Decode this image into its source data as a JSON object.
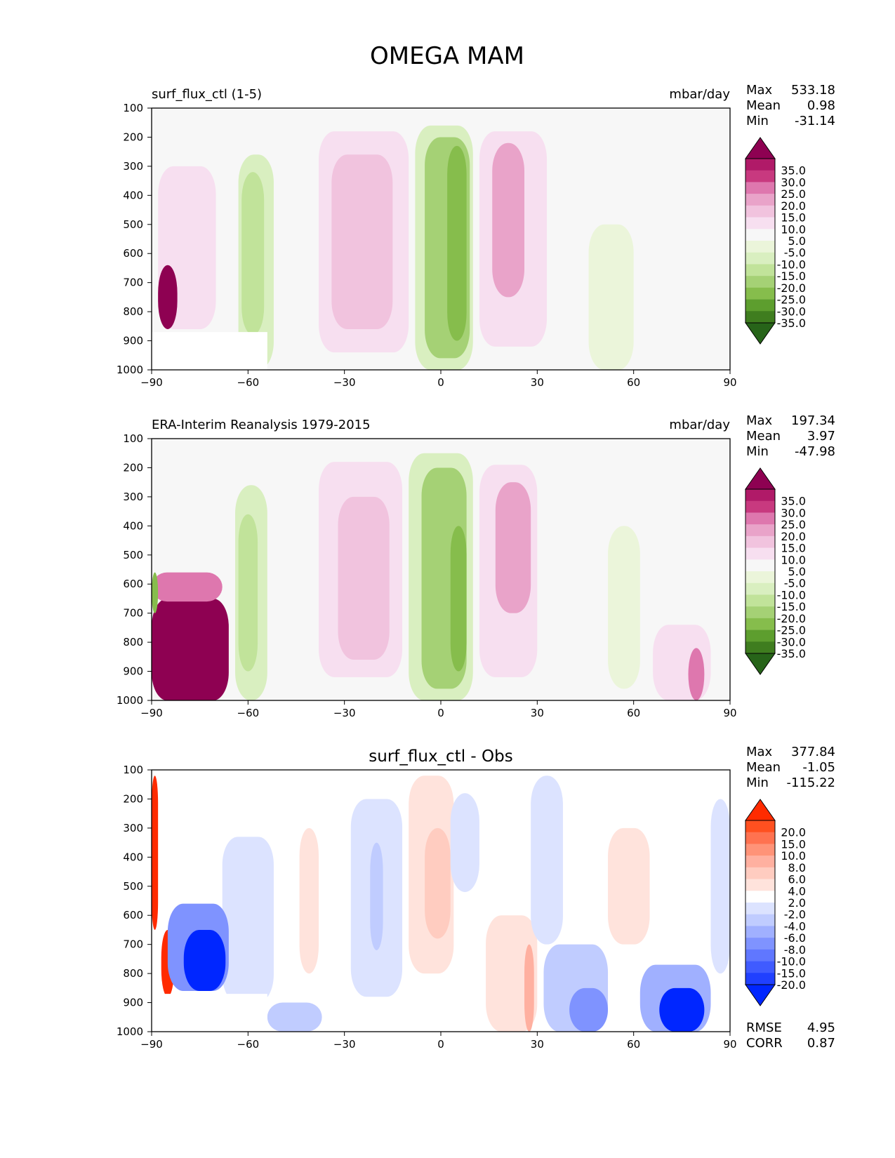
{
  "title": "OMEGA MAM",
  "chart_data": [
    {
      "type": "heatmap",
      "title": "surf_flux_ctl (1-5)",
      "units": "mbar/day",
      "stats": {
        "max": "533.18",
        "mean": "0.98",
        "min": "-31.14"
      },
      "stat_labels": {
        "max": "Max",
        "mean": "Mean",
        "min": "Min"
      },
      "xlim": [
        -90,
        90
      ],
      "ylim": [
        1000,
        100
      ],
      "xticks": [
        -90,
        -60,
        -30,
        0,
        30,
        60,
        90
      ],
      "xtick_labels": [
        "−90",
        "−60",
        "−30",
        "0",
        "30",
        "60",
        "90"
      ],
      "yticks": [
        100,
        200,
        300,
        400,
        500,
        600,
        700,
        800,
        900,
        1000
      ],
      "colorbar": {
        "labels": [
          "35.0",
          "30.0",
          "25.0",
          "20.0",
          "15.0",
          "10.0",
          "5.0",
          "-5.0",
          "-10.0",
          "-15.0",
          "-20.0",
          "-25.0",
          "-30.0",
          "-35.0"
        ],
        "colors": [
          "#8e0152",
          "#b01a68",
          "#c8397f",
          "#de77ae",
          "#e9a3c9",
          "#f1c3de",
          "#f7dff0",
          "#f7f7f7",
          "#ebf5da",
          "#d9efc0",
          "#c1e39a",
          "#a5d175",
          "#86bd4c",
          "#5d9e2e",
          "#3f7d1f",
          "#276419"
        ]
      },
      "features": [
        {
          "lat": [
            -63,
            -52
          ],
          "p": [
            260,
            1000
          ],
          "value": -12
        },
        {
          "lat": [
            -62,
            -55
          ],
          "p": [
            320,
            880
          ],
          "value": -18
        },
        {
          "lat": [
            -38,
            -10
          ],
          "p": [
            180,
            940
          ],
          "value": 6
        },
        {
          "lat": [
            -34,
            -15
          ],
          "p": [
            260,
            860
          ],
          "value": 11
        },
        {
          "lat": [
            -8,
            10
          ],
          "p": [
            160,
            1000
          ],
          "value": -14
        },
        {
          "lat": [
            -5,
            9
          ],
          "p": [
            200,
            960
          ],
          "value": -21
        },
        {
          "lat": [
            2,
            8
          ],
          "p": [
            230,
            900
          ],
          "value": -28
        },
        {
          "lat": [
            12,
            33
          ],
          "p": [
            180,
            920
          ],
          "value": 8
        },
        {
          "lat": [
            16,
            26
          ],
          "p": [
            220,
            750
          ],
          "value": 17
        },
        {
          "lat": [
            -88,
            -70
          ],
          "p": [
            300,
            860
          ],
          "value": 6
        },
        {
          "lat": [
            -88,
            -82
          ],
          "p": [
            640,
            860
          ],
          "value": 36
        },
        {
          "lat": [
            46,
            60
          ],
          "p": [
            500,
            1000
          ],
          "value": -7
        }
      ],
      "masked": [
        {
          "lat": [
            -90,
            -54
          ],
          "p": [
            870,
            1000
          ]
        }
      ]
    },
    {
      "type": "heatmap",
      "title": "ERA-Interim Reanalysis 1979-2015",
      "units": "mbar/day",
      "stats": {
        "max": "197.34",
        "mean": "3.97",
        "min": "-47.98"
      },
      "stat_labels": {
        "max": "Max",
        "mean": "Mean",
        "min": "Min"
      },
      "xlim": [
        -90,
        90
      ],
      "ylim": [
        1000,
        100
      ],
      "xticks": [
        -90,
        -60,
        -30,
        0,
        30,
        60,
        90
      ],
      "xtick_labels": [
        "−90",
        "−60",
        "−30",
        "0",
        "30",
        "60",
        "90"
      ],
      "yticks": [
        100,
        200,
        300,
        400,
        500,
        600,
        700,
        800,
        900,
        1000
      ],
      "colorbar": {
        "labels": [
          "35.0",
          "30.0",
          "25.0",
          "20.0",
          "15.0",
          "10.0",
          "5.0",
          "-5.0",
          "-10.0",
          "-15.0",
          "-20.0",
          "-25.0",
          "-30.0",
          "-35.0"
        ],
        "colors": [
          "#8e0152",
          "#b01a68",
          "#c8397f",
          "#de77ae",
          "#e9a3c9",
          "#f1c3de",
          "#f7dff0",
          "#f7f7f7",
          "#ebf5da",
          "#d9efc0",
          "#c1e39a",
          "#a5d175",
          "#86bd4c",
          "#5d9e2e",
          "#3f7d1f",
          "#276419"
        ]
      },
      "features": [
        {
          "lat": [
            -64,
            -54
          ],
          "p": [
            260,
            1000
          ],
          "value": -12
        },
        {
          "lat": [
            -63,
            -57
          ],
          "p": [
            360,
            900
          ],
          "value": -18
        },
        {
          "lat": [
            -38,
            -12
          ],
          "p": [
            180,
            920
          ],
          "value": 6
        },
        {
          "lat": [
            -32,
            -16
          ],
          "p": [
            300,
            860
          ],
          "value": 11
        },
        {
          "lat": [
            -10,
            10
          ],
          "p": [
            150,
            1000
          ],
          "value": -14
        },
        {
          "lat": [
            -6,
            8
          ],
          "p": [
            200,
            960
          ],
          "value": -21
        },
        {
          "lat": [
            3,
            8
          ],
          "p": [
            400,
            900
          ],
          "value": -28
        },
        {
          "lat": [
            12,
            30
          ],
          "p": [
            190,
            920
          ],
          "value": 8
        },
        {
          "lat": [
            17,
            28
          ],
          "p": [
            250,
            700
          ],
          "value": 17
        },
        {
          "lat": [
            -90,
            -66
          ],
          "p": [
            650,
            1000
          ],
          "value": 36
        },
        {
          "lat": [
            -90,
            -68
          ],
          "p": [
            560,
            660
          ],
          "value": 22
        },
        {
          "lat": [
            -90,
            -88
          ],
          "p": [
            560,
            700
          ],
          "value": -28
        },
        {
          "lat": [
            52,
            62
          ],
          "p": [
            400,
            960
          ],
          "value": -7
        },
        {
          "lat": [
            66,
            84
          ],
          "p": [
            740,
            1000
          ],
          "value": 9
        },
        {
          "lat": [
            77,
            82
          ],
          "p": [
            820,
            1000
          ],
          "value": 24
        }
      ],
      "masked": []
    },
    {
      "type": "heatmap",
      "title": "surf_flux_ctl - Obs",
      "units": "",
      "stats": {
        "max": "377.84",
        "mean": "-1.05",
        "min": "-115.22"
      },
      "stat_labels": {
        "max": "Max",
        "mean": "Mean",
        "min": "Min"
      },
      "metrics": {
        "rmse": "4.95",
        "corr": "0.87"
      },
      "metric_labels": {
        "rmse": "RMSE",
        "corr": "CORR"
      },
      "xlim": [
        -90,
        90
      ],
      "ylim": [
        1000,
        100
      ],
      "xticks": [
        -90,
        -60,
        -30,
        0,
        30,
        60,
        90
      ],
      "xtick_labels": [
        "−90",
        "−60",
        "−30",
        "0",
        "30",
        "60",
        "90"
      ],
      "yticks": [
        100,
        200,
        300,
        400,
        500,
        600,
        700,
        800,
        900,
        1000
      ],
      "colorbar": {
        "labels": [
          "20.0",
          "15.0",
          "10.0",
          "8.0",
          "6.0",
          "4.0",
          "2.0",
          "-2.0",
          "-4.0",
          "-6.0",
          "-8.0",
          "-10.0",
          "-15.0",
          "-20.0"
        ],
        "colors": [
          "#ff2b00",
          "#ff5020",
          "#ff7250",
          "#ff9378",
          "#ffb0a0",
          "#ffccc0",
          "#ffe3dc",
          "#ffffff",
          "#dce3ff",
          "#c0ccff",
          "#a0b0ff",
          "#7f93ff",
          "#6077ff",
          "#405bff",
          "#2040ff",
          "#0026ff"
        ]
      },
      "features": [
        {
          "lat": [
            -90,
            -88
          ],
          "p": [
            120,
            650
          ],
          "value": 21
        },
        {
          "lat": [
            -87,
            -83
          ],
          "p": [
            650,
            880
          ],
          "value": 21
        },
        {
          "lat": [
            -68,
            -52
          ],
          "p": [
            330,
            900
          ],
          "value": -3
        },
        {
          "lat": [
            -85,
            -66
          ],
          "p": [
            560,
            860
          ],
          "value": -9
        },
        {
          "lat": [
            -80,
            -67
          ],
          "p": [
            650,
            860
          ],
          "value": -21
        },
        {
          "lat": [
            -54,
            -37
          ],
          "p": [
            900,
            1000
          ],
          "value": -5
        },
        {
          "lat": [
            -44,
            -38
          ],
          "p": [
            300,
            800
          ],
          "value": 3
        },
        {
          "lat": [
            -28,
            -12
          ],
          "p": [
            200,
            880
          ],
          "value": -3
        },
        {
          "lat": [
            -22,
            -18
          ],
          "p": [
            350,
            720
          ],
          "value": -5
        },
        {
          "lat": [
            -10,
            4
          ],
          "p": [
            120,
            800
          ],
          "value": 3
        },
        {
          "lat": [
            -5,
            3
          ],
          "p": [
            300,
            680
          ],
          "value": 5
        },
        {
          "lat": [
            3,
            12
          ],
          "p": [
            180,
            520
          ],
          "value": -3
        },
        {
          "lat": [
            14,
            30
          ],
          "p": [
            600,
            1000
          ],
          "value": 3
        },
        {
          "lat": [
            26,
            29
          ],
          "p": [
            700,
            1000
          ],
          "value": 6
        },
        {
          "lat": [
            28,
            38
          ],
          "p": [
            120,
            700
          ],
          "value": -3
        },
        {
          "lat": [
            32,
            52
          ],
          "p": [
            700,
            1000
          ],
          "value": -5
        },
        {
          "lat": [
            40,
            52
          ],
          "p": [
            850,
            1000
          ],
          "value": -10
        },
        {
          "lat": [
            52,
            65
          ],
          "p": [
            300,
            700
          ],
          "value": 3
        },
        {
          "lat": [
            62,
            84
          ],
          "p": [
            770,
            1000
          ],
          "value": -8
        },
        {
          "lat": [
            68,
            82
          ],
          "p": [
            850,
            1000
          ],
          "value": -21
        },
        {
          "lat": [
            84,
            90
          ],
          "p": [
            200,
            800
          ],
          "value": -3
        }
      ],
      "masked": [
        {
          "lat": [
            -86,
            -54
          ],
          "p": [
            870,
            1000
          ]
        }
      ]
    }
  ]
}
